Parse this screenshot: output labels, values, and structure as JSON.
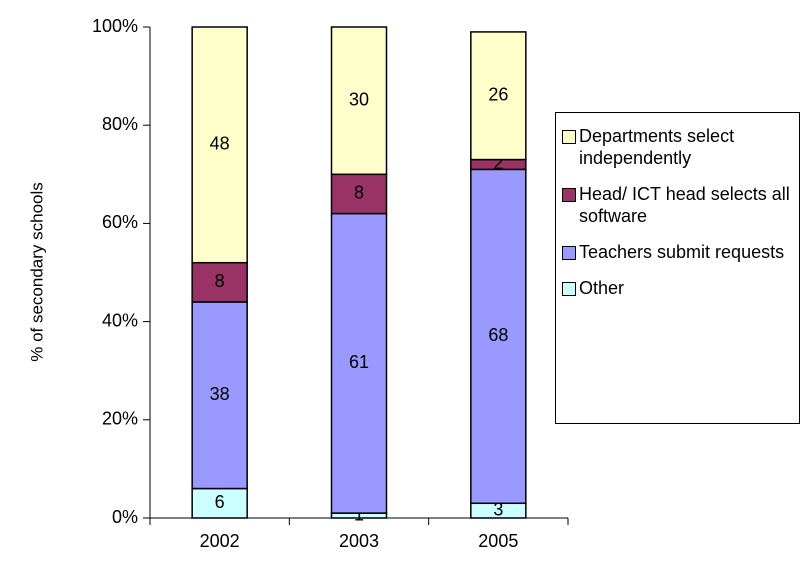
{
  "chart_data": {
    "type": "stacked_bar",
    "y_label": "% of secondary schools",
    "categories": [
      "2002",
      "2003",
      "2005"
    ],
    "series": [
      {
        "name": "Other",
        "color": "#ccffff",
        "values": [
          6,
          1,
          3
        ]
      },
      {
        "name": "Teachers submit requests",
        "color": "#9999ff",
        "values": [
          38,
          61,
          68
        ]
      },
      {
        "name": "Head/ ICT head selects all software",
        "color": "#993366",
        "values": [
          8,
          8,
          2
        ]
      },
      {
        "name": "Departments select independently",
        "color": "#ffffcc",
        "values": [
          48,
          30,
          26
        ]
      }
    ],
    "ylim": [
      0,
      100
    ],
    "yticks": [
      {
        "value": 0,
        "label": "0%"
      },
      {
        "value": 20,
        "label": "20%"
      },
      {
        "value": 40,
        "label": "40%"
      },
      {
        "value": 60,
        "label": "60%"
      },
      {
        "value": 80,
        "label": "80%"
      },
      {
        "value": 100,
        "label": "100%"
      }
    ],
    "legend": "right"
  }
}
